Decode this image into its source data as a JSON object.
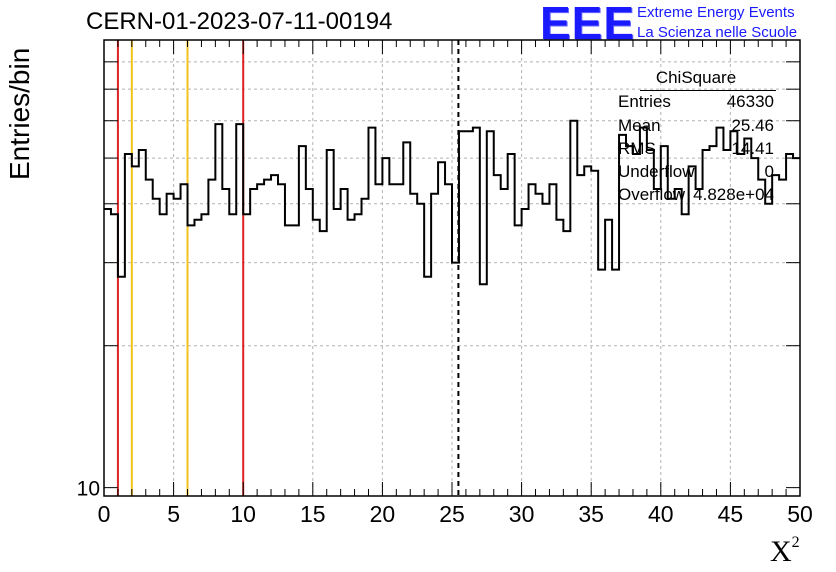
{
  "title": "CERN-01-2023-07-11-00194",
  "logo": {
    "mark": "EEE",
    "line1": "Extreme Energy Events",
    "line2": "La Scienza nelle Scuole",
    "color": "#1a1aff"
  },
  "stats": {
    "name": "ChiSquare",
    "rows": [
      {
        "key": "Entries",
        "value": "46330"
      },
      {
        "key": "Mean",
        "value": "25.46"
      },
      {
        "key": "RMS",
        "value": "14.41"
      },
      {
        "key": "Underflow",
        "value": "0"
      },
      {
        "key": "Overflow",
        "value": "4.828e+04"
      }
    ]
  },
  "chart_data": {
    "type": "histogram",
    "ylabel": "Entries/bin",
    "xlabel": "X",
    "xlabel_sup": "2",
    "xlim": [
      0,
      50
    ],
    "ylim": [
      9.6,
      89
    ],
    "y_log_scale": true,
    "x_ticks": [
      "0",
      "5",
      "10",
      "15",
      "20",
      "25",
      "30",
      "35",
      "40",
      "45",
      "50"
    ],
    "y_ticks": [
      "10"
    ],
    "grid": true,
    "bin_width": 0.5,
    "values": [
      39,
      38,
      28,
      51,
      48,
      52,
      45,
      41,
      38,
      42,
      41,
      44,
      36,
      37,
      38,
      45,
      59,
      43,
      38,
      59,
      38,
      43,
      44,
      45,
      46,
      44,
      36,
      36,
      53,
      43,
      37,
      35,
      52,
      39,
      43,
      37,
      38,
      41,
      58,
      44,
      50,
      44,
      44,
      54,
      42,
      40,
      28,
      42,
      49,
      44,
      30,
      57,
      57,
      58,
      27,
      57,
      46,
      43,
      51,
      36,
      39,
      44,
      42,
      40,
      44,
      37,
      35,
      60,
      46,
      48,
      47,
      29,
      37,
      29,
      56,
      53,
      51,
      58,
      52,
      43,
      53,
      41,
      43,
      38,
      48,
      43,
      52,
      53,
      58,
      52,
      57,
      51,
      55,
      50,
      45,
      40,
      46,
      45,
      51,
      50
    ],
    "vertical_markers": [
      {
        "x": 1,
        "color": "#dd2222",
        "style": "solid"
      },
      {
        "x": 2,
        "color": "#f2c21d",
        "style": "solid"
      },
      {
        "x": 6,
        "color": "#f2c21d",
        "style": "solid"
      },
      {
        "x": 10,
        "color": "#dd2222",
        "style": "solid"
      },
      {
        "x": 25.46,
        "color": "#000000",
        "style": "dashed"
      }
    ]
  }
}
